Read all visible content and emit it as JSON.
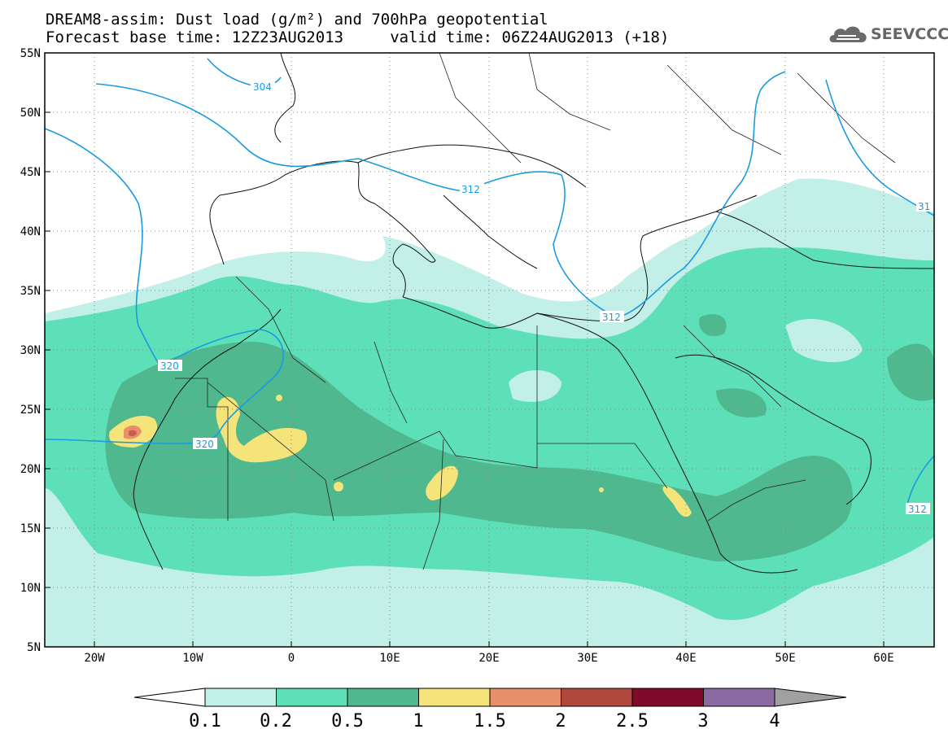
{
  "title_line1": "DREAM8-assim: Dust load (g/m²) and 700hPa geopotential",
  "title_line2": "Forecast base time: 12Z23AUG2013     valid time: 06Z24AUG2013 (+18)",
  "logo": {
    "text": "SEEVCCC",
    "icon": "cloud-logo-icon",
    "color": "#666666"
  },
  "map": {
    "lon_range": [
      -25,
      65
    ],
    "lat_range": [
      5,
      55
    ],
    "lat_ticks": [
      "55N",
      "50N",
      "45N",
      "40N",
      "35N",
      "30N",
      "25N",
      "20N",
      "15N",
      "10N",
      "5N"
    ],
    "lon_ticks": [
      "20W",
      "10W",
      "0",
      "10E",
      "20E",
      "30E",
      "40E",
      "50E",
      "60E"
    ],
    "grid": true
  },
  "contour_labels": [
    "304",
    "312",
    "312",
    "320",
    "320",
    "312",
    "312",
    "31"
  ],
  "colorbar": {
    "labels": [
      "0.1",
      "0.2",
      "0.5",
      "1",
      "1.5",
      "2",
      "2.5",
      "3",
      "4"
    ],
    "colors": [
      "#c2f0e8",
      "#5de0b8",
      "#4fb88f",
      "#f5e47a",
      "#e9906a",
      "#b0483e",
      "#800a2a",
      "#8a6aa0",
      "#a0a0a0"
    ]
  }
}
